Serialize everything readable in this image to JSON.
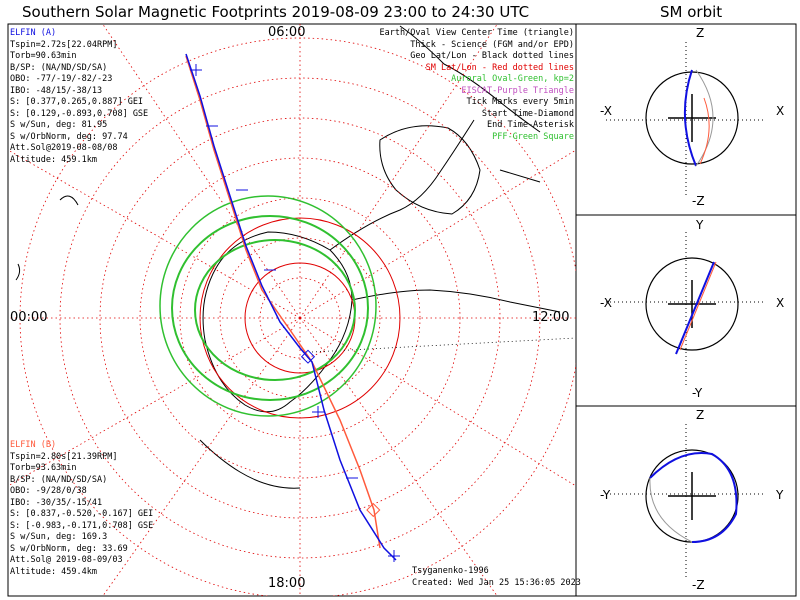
{
  "title": "Southern Solar Magnetic Footprints 2019-08-09 23:00 to 24:30 UTC",
  "orbit_title": "SM orbit",
  "clock_labels": {
    "top": "06:00",
    "bottom": "18:00",
    "left": "00:00",
    "right": "12:00"
  },
  "elfin_a": {
    "name": "ELFIN (A)",
    "color": "#1010e0",
    "lines": [
      "Tspin=2.72s[22.04RPM]",
      "Torb=90.63min",
      "B/SP: (NA/ND/SD/SA)",
      "OBO: -77/-19/-82/-23",
      "IBO: -48/15/-38/13",
      "S: [0.377,0.265,0.887] GEI",
      "S: [0.129,-0.893,0.708] GSE",
      "S w/Sun, deg: 81.95",
      "S w/OrbNorm, deg: 97.74",
      "Att.Sol@2019-08-08/08",
      "Altitude: 459.1km"
    ]
  },
  "elfin_b": {
    "name": "ELFIN (B)",
    "color": "#ff5a3c",
    "lines": [
      "Tspin=2.80s[21.39RPM]",
      "Torb=93.63min",
      "B/SP: (NA/ND/SD/SA)",
      "OBO: -9/28/0/38",
      "IBO: -30/35/-15/41",
      "S: [0.837,-0.520,-0.167] GEI",
      "S: [-0.983,-0.171,0.708] GSE",
      "S w/Sun, deg: 169.3",
      "S w/OrbNorm, deg: 33.69",
      "Att.Sol@ 2019-08-09/03",
      "Altitude: 459.4km"
    ]
  },
  "legend": [
    {
      "text": "Earth/Oval View Center Time (triangle)",
      "color": "#000000"
    },
    {
      "text": "Thick - Science (FGM and/or EPD)",
      "color": "#000000"
    },
    {
      "text": "Geo Lat/Lon - Black dotted lines",
      "color": "#000000"
    },
    {
      "text": "SM Lat/Lon - Red dotted lines",
      "color": "#e00000"
    },
    {
      "text": "Auroral Oval-Green, kp=2",
      "color": "#30c030"
    },
    {
      "text": "EISCAT-Purple Triangle",
      "color": "#c050c0"
    },
    {
      "text": "Tick Marks every 5min",
      "color": "#000000"
    },
    {
      "text": "Start Time-Diamond",
      "color": "#000000"
    },
    {
      "text": "End Time-Asterisk",
      "color": "#000000"
    },
    {
      "text": "PFF-Green Square",
      "color": "#30c030"
    }
  ],
  "footer": {
    "credit": "Tsyganenko-1996",
    "created": "Created: Wed Jan 25 15:36:05 2023"
  },
  "panels": [
    {
      "top": "Z",
      "bottom": "-Z",
      "left": "-X",
      "right": "X"
    },
    {
      "top": "Y",
      "bottom": "-Y",
      "left": "-X",
      "right": "X"
    },
    {
      "top": "Z",
      "bottom": "-Z",
      "left": "-Y",
      "right": "Y"
    }
  ],
  "chart_data": {
    "type": "polar-map",
    "title": "Southern Solar Magnetic Footprints 2019-08-09 23:00 to 24:30 UTC",
    "grid": true,
    "series": [
      {
        "name": "ELFIN (A)",
        "color": "#1010e0"
      },
      {
        "name": "ELFIN (B)",
        "color": "#ff5a3c"
      }
    ]
  }
}
